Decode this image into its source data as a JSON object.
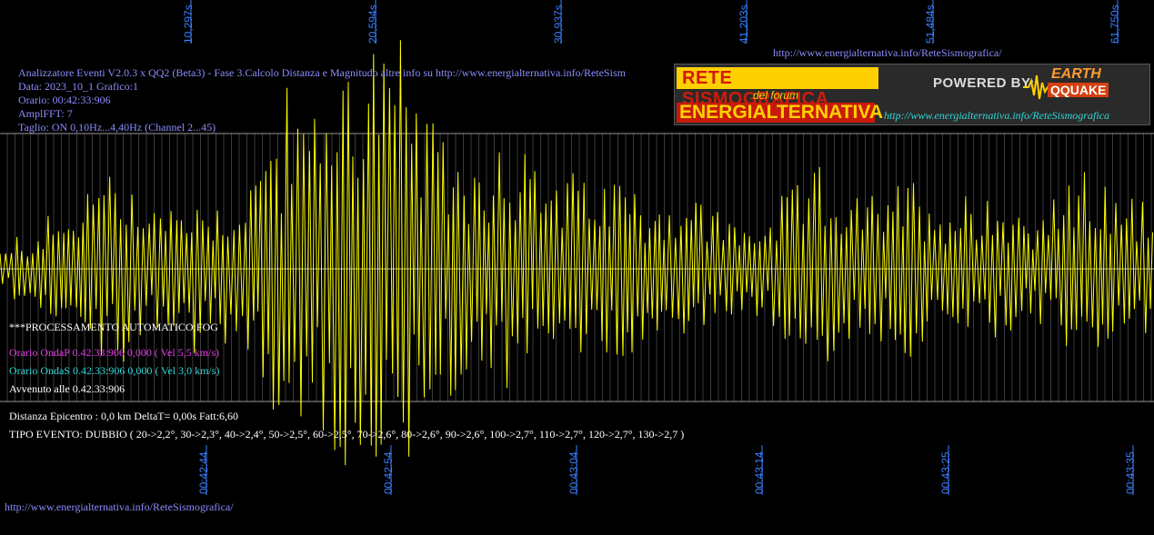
{
  "header": {
    "line1": "Analizzatore Eventi V2.0.3 x QQ2 (Beta3) - Fase 3.Calcolo Distanza e Magnitudo altre info su http://www.energialternativa.info/ReteSism",
    "line2": "Data: 2023_10_1 Grafico:1",
    "line3": "Orario: 00:42:33:906",
    "line4": "AmplFFT: 7",
    "line5": "Taglio: ON 0,10Hz...4,40Hz       (Channel 2...45)"
  },
  "top_url": "http://www.energialternativa.info/ReteSismografica/",
  "bottom_url": "http://www.energialternativa.info/ReteSismografica/",
  "logo": {
    "title1": "RETE SISMOGRAFICA",
    "title_sub": "del forum",
    "title2": "ENERGIALTERNATIVA",
    "powered": "POWERED BY:",
    "brand1": "EARTH",
    "brand2": "QQUAKE",
    "url": "http://www.energialternativa.info/ReteSismografica"
  },
  "info": {
    "processing": "***PROCESSAMENTO AUTOMATICO:FOG",
    "wave_p": "Orario OndaP 0.42.33:906  0,000 ( Vel 5,5 km/s)",
    "wave_s": "Orario OndaS 0.42.33:906  0,000 ( Vel 3,0 km/s)",
    "occurred": "Avvenuto alle 0.42.33:906",
    "distance": "Distanza Epicentro : 0,0 km DeltaT= 0,00s  Fatt:6,60",
    "event_type": "TIPO EVENTO: DUBBIO ( 20->2,2°, 30->2,3°, 40->2,4°, 50->2,5°, 60->2,5°, 70->2,6°, 80->2,6°, 90->2,6°, 100->2,7°, 110->2,7°, 120->2,7°, 130->2,7 )"
  },
  "colors": {
    "trace": "#ffff00",
    "grid": "#6e6e6e",
    "axis_labels": "#3a7fff"
  },
  "chart_data": {
    "type": "line",
    "top_axis_ticks": [
      "10,297s",
      "20,594s",
      "30,937s",
      "41,203s",
      "51,484s",
      "61,750s"
    ],
    "bottom_axis_ticks": [
      "00:42:44",
      "00:42:54",
      "00:43:04",
      "00:43:14",
      "00:43:25",
      "00:43:35"
    ],
    "series": [
      {
        "values": [
          0.08,
          0.15,
          0.12,
          0.18,
          0.22,
          0.2,
          0.25,
          0.35,
          0.45,
          0.4,
          0.38,
          0.42,
          0.3,
          0.28,
          0.3,
          0.25,
          0.35,
          0.3,
          0.28,
          0.32,
          0.35,
          0.4,
          0.55,
          0.6,
          0.75,
          0.7,
          0.65,
          0.8,
          0.85,
          0.9,
          0.95,
          1.0,
          0.98,
          0.85,
          0.95,
          0.7,
          0.6,
          0.55,
          0.52,
          0.5,
          0.48,
          0.45,
          0.6,
          0.55,
          0.5,
          0.42,
          0.4,
          0.38,
          0.4,
          0.36,
          0.38,
          0.35,
          0.42,
          0.35,
          0.3,
          0.28,
          0.3,
          0.32,
          0.28,
          0.3,
          0.25,
          0.22,
          0.2,
          0.18,
          0.2,
          0.25,
          0.3,
          0.35,
          0.38,
          0.42,
          0.4,
          0.35,
          0.3,
          0.28,
          0.32,
          0.3,
          0.35,
          0.38,
          0.32,
          0.3,
          0.28,
          0.3,
          0.32,
          0.35,
          0.3,
          0.28,
          0.25,
          0.22,
          0.25,
          0.3,
          0.35,
          0.38,
          0.4,
          0.35,
          0.3,
          0.28,
          0.3,
          0.35
        ]
      }
    ]
  }
}
